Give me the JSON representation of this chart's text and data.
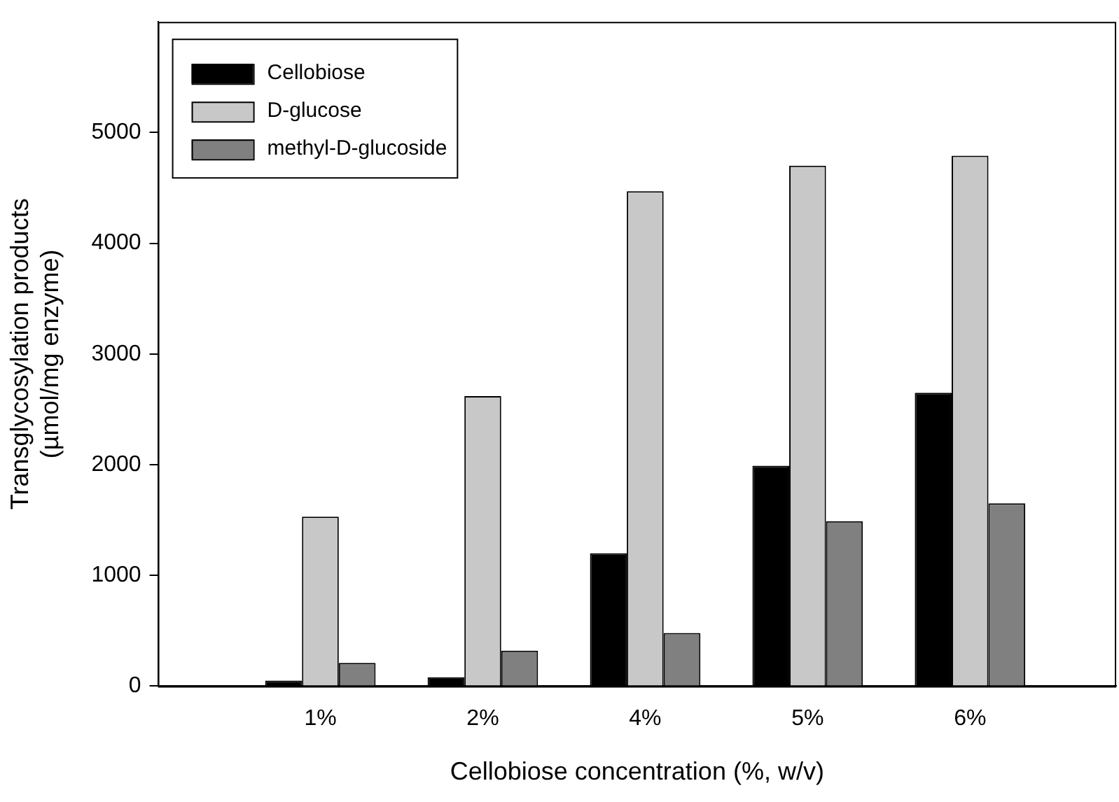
{
  "chart_data": {
    "type": "bar",
    "xlabel": "Cellobiose concentration (%, w/v)",
    "ylabel": "Transglycosylation products\n(µmol/mg enzyme)",
    "categories": [
      "1%",
      "2%",
      "4%",
      "5%",
      "6%"
    ],
    "series": [
      {
        "name": "Cellobiose",
        "color": "#000000",
        "values": [
          50,
          80,
          1200,
          1990,
          2650
        ]
      },
      {
        "name": "D-glucose",
        "color": "#c8c8c8",
        "values": [
          1530,
          2620,
          4470,
          4700,
          4790
        ]
      },
      {
        "name": "methyl-D-glucoside",
        "color": "#808080",
        "values": [
          210,
          320,
          480,
          1490,
          1650
        ]
      }
    ],
    "ylim": [
      0,
      6000
    ],
    "yticks": [
      0,
      1000,
      2000,
      3000,
      4000,
      5000
    ],
    "grid": false,
    "legend": "top left"
  }
}
